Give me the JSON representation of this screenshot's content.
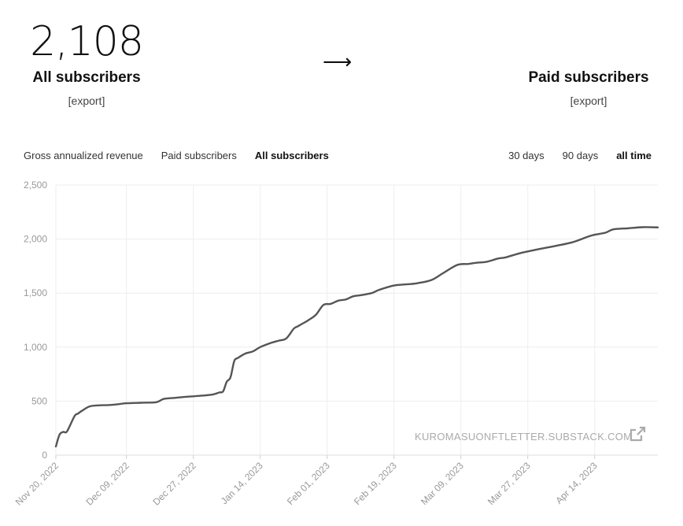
{
  "summary": {
    "all_subscribers_count": "2,108",
    "all_subscribers_label": "All subscribers",
    "all_export_label": "[export]",
    "arrow": "⟶",
    "paid_subscribers_label": "Paid subscribers",
    "paid_export_label": "[export]"
  },
  "metric_tabs": [
    {
      "label": "Gross annualized revenue",
      "active": false
    },
    {
      "label": "Paid subscribers",
      "active": false
    },
    {
      "label": "All subscribers",
      "active": true
    }
  ],
  "range_tabs": [
    {
      "label": "30 days",
      "active": false
    },
    {
      "label": "90 days",
      "active": false
    },
    {
      "label": "all time",
      "active": true
    }
  ],
  "watermark": "KUROMASUONFTLETTER.SUBSTACK.COM",
  "colors": {
    "line": "#555555",
    "grid": "#eeeeee",
    "axis_text": "#999999"
  },
  "chart_data": {
    "type": "line",
    "title": "",
    "xlabel": "",
    "ylabel": "",
    "ylim": [
      0,
      2500
    ],
    "yticks": [
      0,
      500,
      1000,
      1500,
      2000,
      2500
    ],
    "ytick_labels": [
      "0",
      "500",
      "1,000",
      "1,500",
      "2,000",
      "2,500"
    ],
    "xlim": [
      "2022-11-20",
      "2023-05-01"
    ],
    "xticks": [
      "2022-11-20",
      "2022-12-09",
      "2022-12-27",
      "2023-01-14",
      "2023-02-01",
      "2023-02-19",
      "2023-03-09",
      "2023-03-27",
      "2023-04-14"
    ],
    "xtick_labels": [
      "Nov 20, 2022",
      "Dec 09, 2022",
      "Dec 27, 2022",
      "Jan 14, 2023",
      "Feb 01, 2023",
      "Feb 19, 2023",
      "Mar 09, 2023",
      "Mar 27, 2023",
      "Apr 14, 2023"
    ],
    "grid": true,
    "series": [
      {
        "x": [
          "2022-11-20",
          "2022-11-21",
          "2022-11-22",
          "2022-11-23",
          "2022-11-25",
          "2022-11-26",
          "2022-11-27",
          "2022-11-29",
          "2022-12-01",
          "2022-12-05",
          "2022-12-09",
          "2022-12-13",
          "2022-12-17",
          "2022-12-19",
          "2022-12-22",
          "2022-12-25",
          "2022-12-29",
          "2023-01-01",
          "2023-01-03",
          "2023-01-04",
          "2023-01-05",
          "2023-01-06",
          "2023-01-07",
          "2023-01-08",
          "2023-01-10",
          "2023-01-12",
          "2023-01-14",
          "2023-01-17",
          "2023-01-19",
          "2023-01-21",
          "2023-01-23",
          "2023-01-24",
          "2023-01-25",
          "2023-01-27",
          "2023-01-29",
          "2023-01-31",
          "2023-02-02",
          "2023-02-04",
          "2023-02-06",
          "2023-02-08",
          "2023-02-10",
          "2023-02-13",
          "2023-02-15",
          "2023-02-19",
          "2023-02-22",
          "2023-02-25",
          "2023-03-01",
          "2023-03-04",
          "2023-03-08",
          "2023-03-11",
          "2023-03-13",
          "2023-03-16",
          "2023-03-19",
          "2023-03-21",
          "2023-03-25",
          "2023-03-29",
          "2023-04-01",
          "2023-04-04",
          "2023-04-08",
          "2023-04-12",
          "2023-04-14",
          "2023-04-17",
          "2023-04-19",
          "2023-04-23",
          "2023-04-27",
          "2023-05-01"
        ],
        "values": [
          80,
          190,
          215,
          220,
          360,
          385,
          410,
          450,
          460,
          465,
          480,
          485,
          490,
          520,
          530,
          540,
          550,
          560,
          580,
          590,
          680,
          720,
          870,
          900,
          940,
          960,
          1000,
          1040,
          1060,
          1080,
          1170,
          1190,
          1210,
          1250,
          1300,
          1390,
          1400,
          1430,
          1440,
          1470,
          1480,
          1500,
          1530,
          1570,
          1580,
          1590,
          1620,
          1680,
          1760,
          1770,
          1780,
          1790,
          1820,
          1830,
          1870,
          1900,
          1920,
          1940,
          1970,
          2020,
          2040,
          2060,
          2090,
          2100,
          2110,
          2108
        ]
      }
    ]
  }
}
